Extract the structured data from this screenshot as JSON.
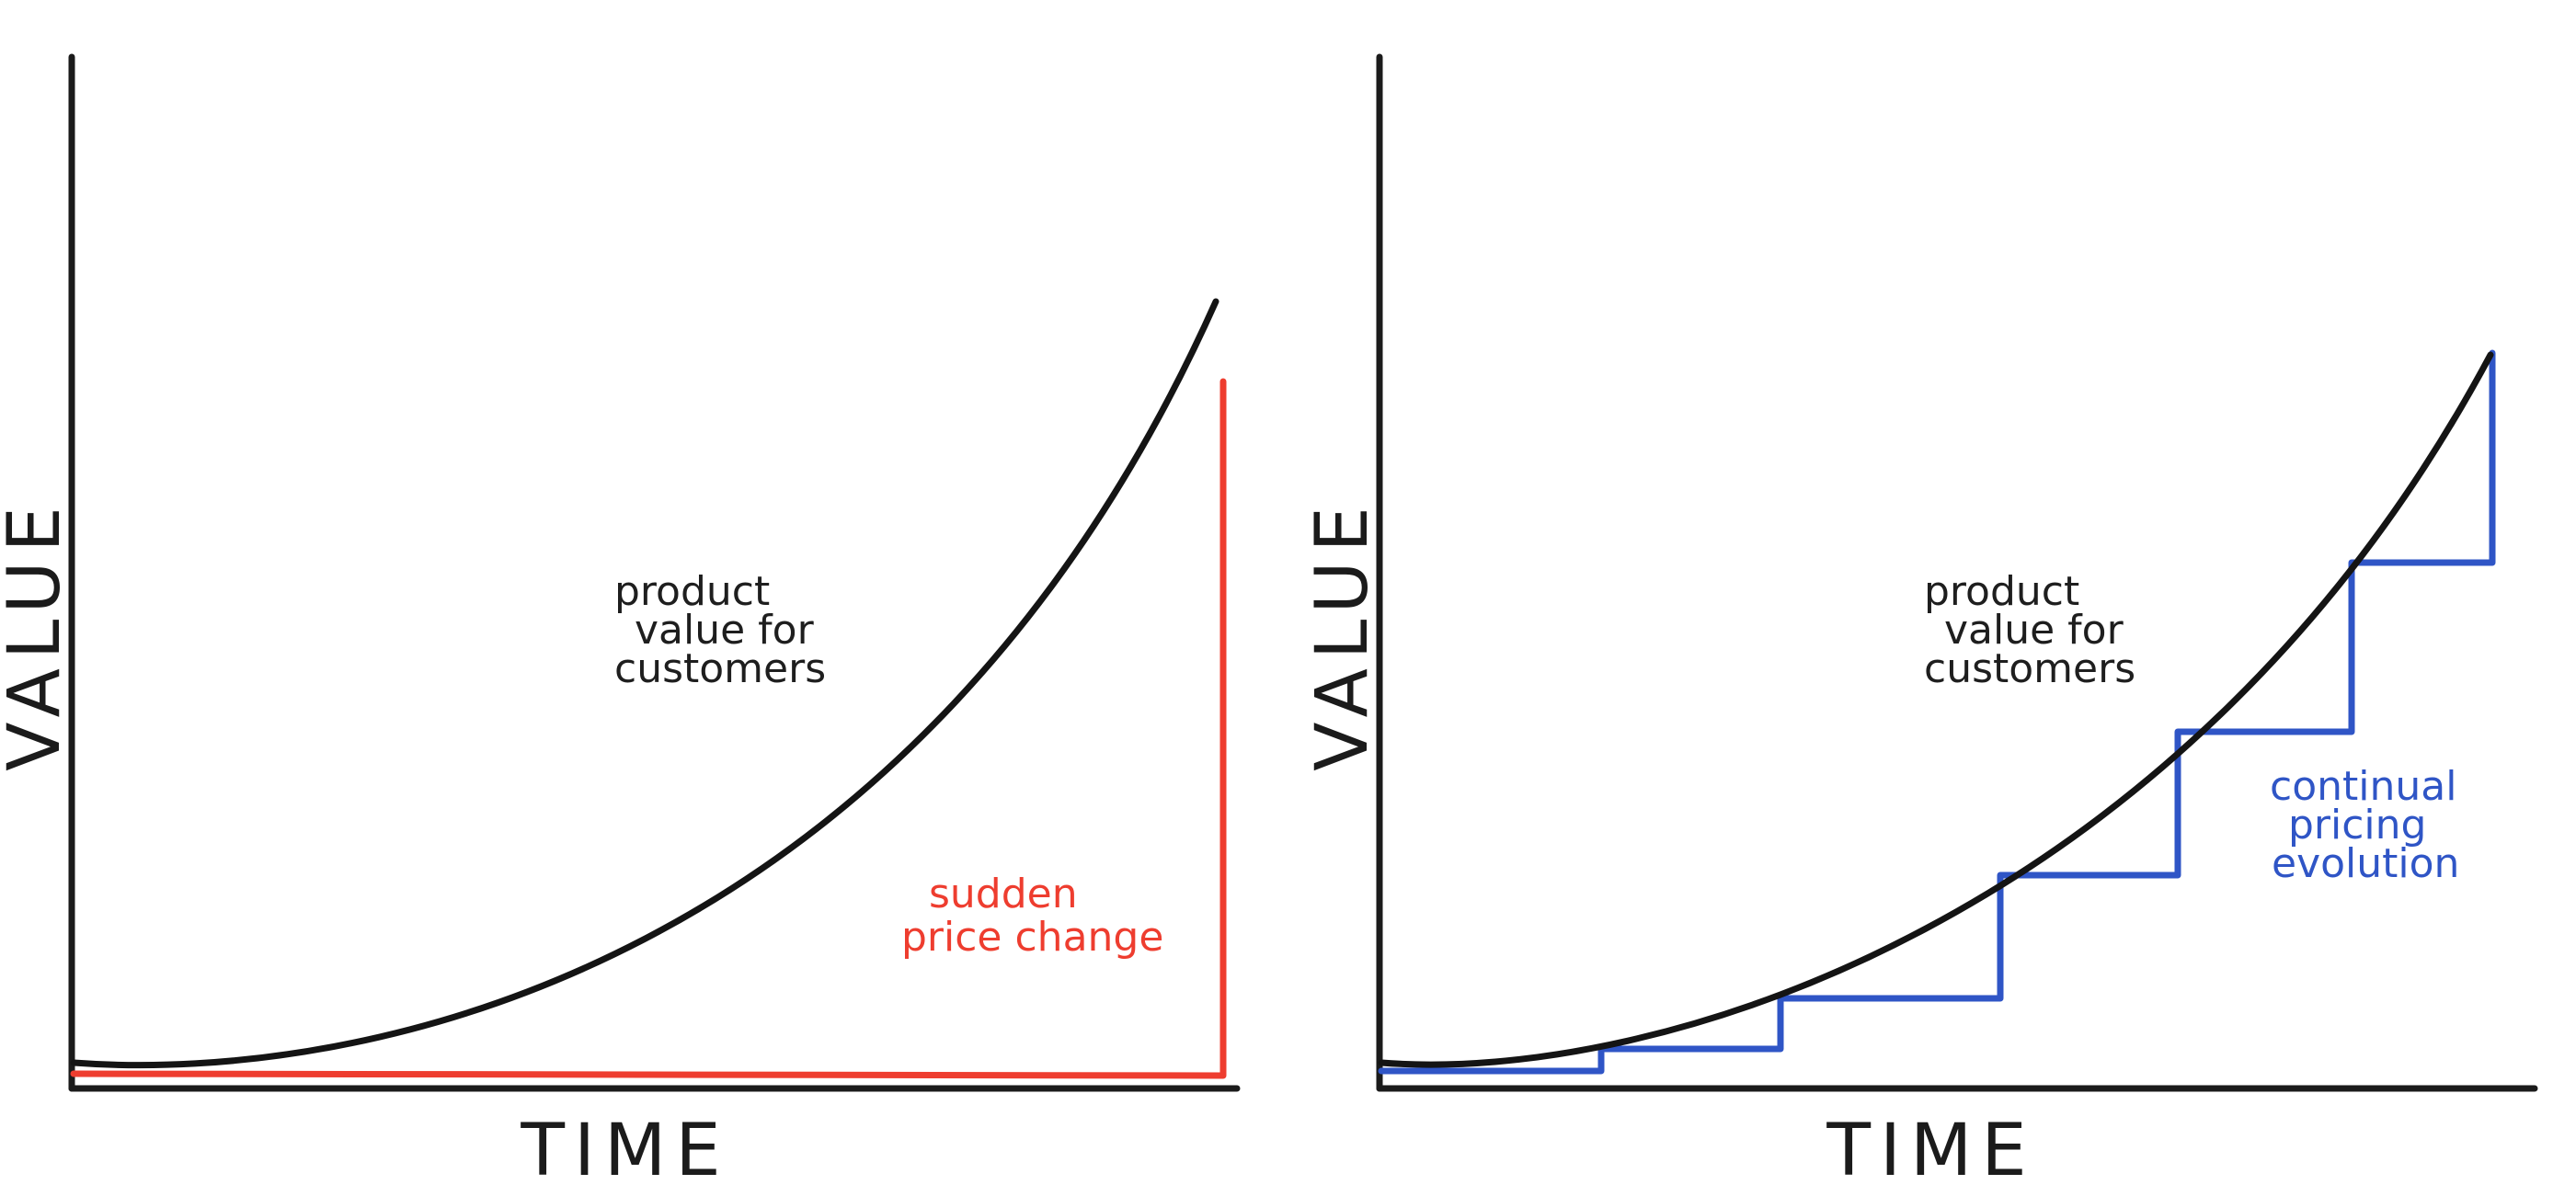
{
  "colors": {
    "axis": "#1b1b1b",
    "value_curve": "#141414",
    "sudden_price": "#ee3d2f",
    "continual_price": "#2f55c6",
    "background": "#ffffff"
  },
  "left_panel": {
    "y_axis_label": "VALUE",
    "x_axis_label": "TIME",
    "curve_label": [
      "product",
      "value for",
      "customers"
    ],
    "price_label": [
      "sudden",
      "price change"
    ]
  },
  "right_panel": {
    "y_axis_label": "VALUE",
    "x_axis_label": "TIME",
    "curve_label": [
      "product",
      "value for",
      "customers"
    ],
    "price_label": [
      "continual",
      "pricing",
      "evolution"
    ]
  }
}
